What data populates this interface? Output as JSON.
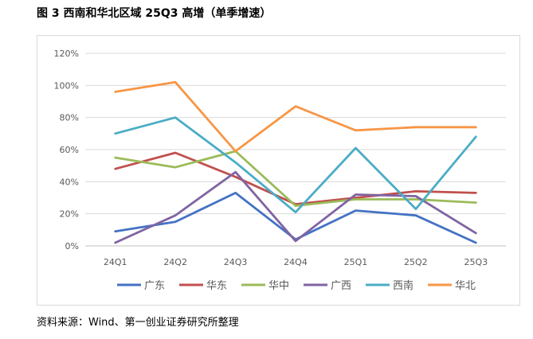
{
  "figure": {
    "title": "图 3 西南和华北区域 25Q3 高增（单季增速）",
    "source": "资料来源：Wind、第一创业证券研究所整理"
  },
  "chart_data": {
    "type": "line",
    "title": "",
    "xlabel": "",
    "ylabel": "",
    "categories": [
      "24Q1",
      "24Q2",
      "24Q3",
      "24Q4",
      "25Q1",
      "25Q2",
      "25Q3"
    ],
    "ylim": [
      0,
      120
    ],
    "yticks": [
      0,
      20,
      40,
      60,
      80,
      100,
      120
    ],
    "ytick_labels": [
      "0%",
      "20%",
      "40%",
      "60%",
      "80%",
      "100%",
      "120%"
    ],
    "grid": true,
    "legend_position": "bottom",
    "series": [
      {
        "name": "广东",
        "color": "#4472C4",
        "values": [
          9,
          15,
          33,
          4,
          22,
          19,
          2
        ]
      },
      {
        "name": "华东",
        "color": "#C0504D",
        "values": [
          48,
          58,
          43,
          26,
          30,
          34,
          33
        ]
      },
      {
        "name": "华中",
        "color": "#9BBB59",
        "values": [
          55,
          49,
          59,
          25,
          29,
          29,
          27
        ]
      },
      {
        "name": "广西",
        "color": "#8064A2",
        "values": [
          2,
          19,
          46,
          3,
          32,
          31,
          8
        ]
      },
      {
        "name": "西南",
        "color": "#4BACC6",
        "values": [
          70,
          80,
          52,
          21,
          61,
          23,
          68
        ]
      },
      {
        "name": "华北",
        "color": "#F79646",
        "values": [
          96,
          102,
          59,
          87,
          72,
          74,
          74
        ]
      }
    ]
  }
}
